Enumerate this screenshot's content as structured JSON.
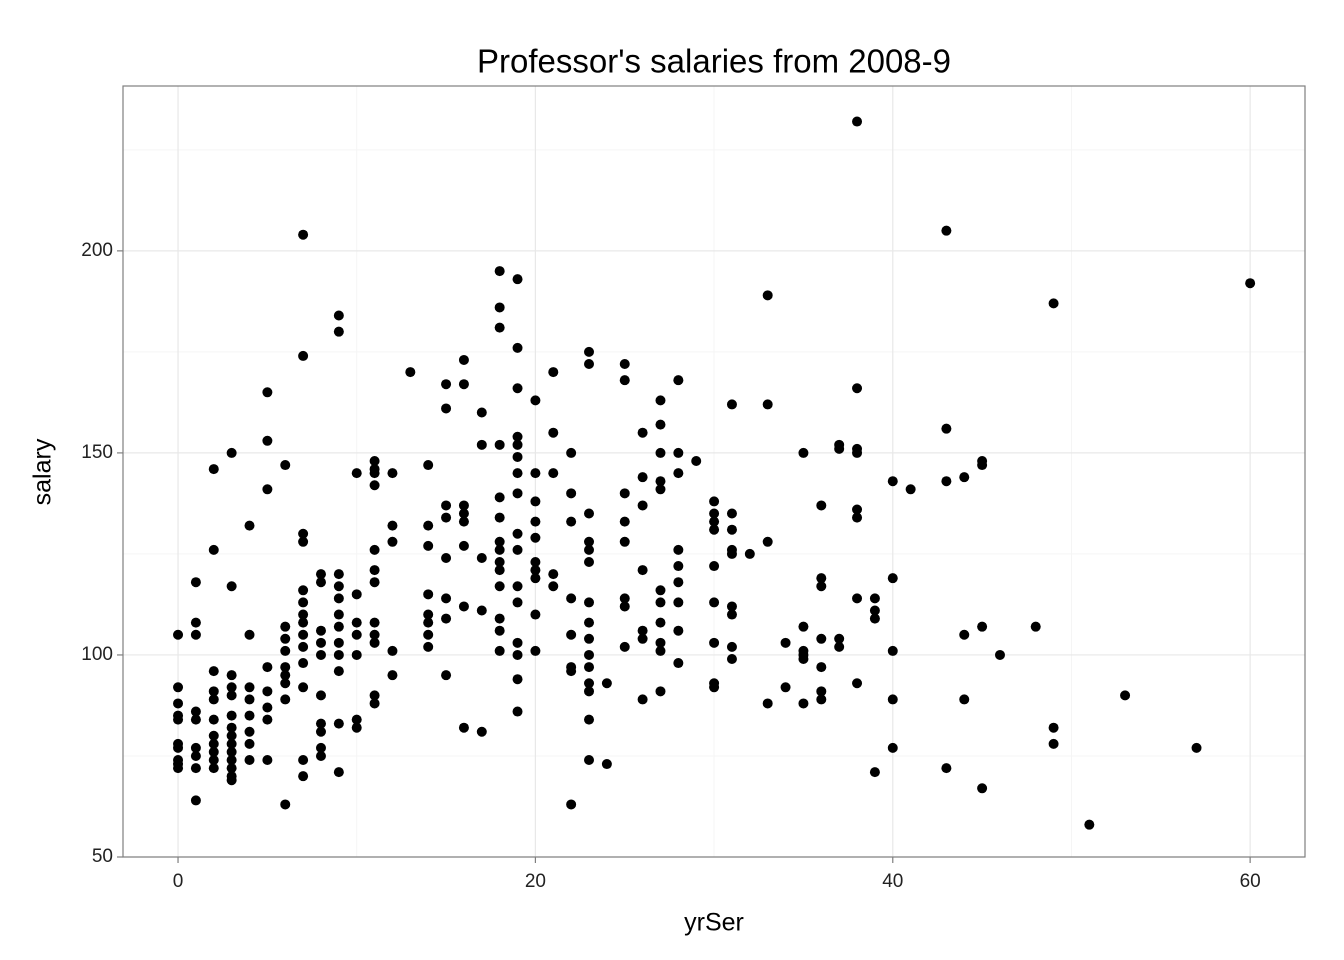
{
  "chart_data": {
    "type": "scatter",
    "title": "Professor's salaries from 2008-9",
    "x_label": "yrSer",
    "y_label": "salary",
    "color": "#000000",
    "grid": true,
    "xlim": [
      -3.08,
      63.07
    ],
    "ylim": [
      50,
      240.8
    ],
    "xticks": [
      0,
      20,
      40,
      60
    ],
    "yticks": [
      50,
      100,
      150,
      200
    ],
    "minor_xticks": [
      10,
      30,
      50
    ],
    "minor_yticks": [
      75,
      125,
      175,
      225
    ],
    "x": [
      0,
      0,
      0,
      0,
      0,
      0,
      0,
      0,
      0,
      0,
      1,
      1,
      1,
      1,
      1,
      1,
      1,
      1,
      1,
      2,
      2,
      2,
      2,
      2,
      2,
      2,
      2,
      2,
      2,
      2,
      3,
      3,
      3,
      3,
      3,
      3,
      3,
      3,
      3,
      3,
      3,
      3,
      3,
      3,
      4,
      4,
      4,
      4,
      4,
      4,
      4,
      4,
      5,
      5,
      5,
      5,
      5,
      5,
      5,
      5,
      6,
      6,
      6,
      6,
      6,
      6,
      6,
      6,
      6,
      7,
      7,
      7,
      7,
      7,
      7,
      7,
      7,
      7,
      7,
      7,
      7,
      7,
      7,
      8,
      8,
      8,
      8,
      8,
      8,
      8,
      8,
      8,
      8,
      9,
      9,
      9,
      9,
      9,
      9,
      9,
      9,
      9,
      9,
      9,
      9,
      10,
      10,
      10,
      10,
      10,
      10,
      10,
      11,
      11,
      11,
      11,
      11,
      11,
      11,
      11,
      11,
      11,
      11,
      11,
      12,
      12,
      12,
      12,
      12,
      13,
      14,
      14,
      14,
      14,
      14,
      14,
      14,
      14,
      15,
      15,
      15,
      15,
      15,
      15,
      15,
      15,
      16,
      16,
      16,
      16,
      16,
      16,
      16,
      16,
      17,
      17,
      17,
      17,
      17,
      18,
      18,
      18,
      18,
      18,
      18,
      18,
      18,
      18,
      18,
      18,
      18,
      18,
      18,
      19,
      19,
      19,
      19,
      19,
      19,
      19,
      19,
      19,
      19,
      19,
      19,
      19,
      19,
      19,
      19,
      20,
      20,
      20,
      20,
      20,
      20,
      20,
      20,
      20,
      20,
      21,
      21,
      21,
      21,
      21,
      22,
      22,
      22,
      22,
      22,
      22,
      22,
      22,
      23,
      23,
      23,
      23,
      23,
      23,
      23,
      23,
      23,
      23,
      23,
      23,
      23,
      23,
      23,
      24,
      24,
      25,
      25,
      25,
      25,
      25,
      25,
      25,
      25,
      26,
      26,
      26,
      26,
      26,
      26,
      26,
      27,
      27,
      27,
      27,
      27,
      27,
      27,
      27,
      27,
      27,
      27,
      28,
      28,
      28,
      28,
      28,
      28,
      28,
      28,
      28,
      29,
      30,
      30,
      30,
      30,
      30,
      30,
      30,
      30,
      30,
      31,
      31,
      31,
      31,
      31,
      31,
      31,
      31,
      31,
      32,
      33,
      33,
      33,
      33,
      34,
      34,
      35,
      35,
      35,
      35,
      35,
      35,
      36,
      36,
      36,
      36,
      36,
      36,
      36,
      37,
      37,
      37,
      37,
      38,
      38,
      38,
      38,
      38,
      38,
      38,
      38,
      39,
      39,
      39,
      39,
      40,
      40,
      40,
      40,
      40,
      41,
      43,
      43,
      43,
      43,
      44,
      44,
      44,
      45,
      45,
      45,
      45,
      46,
      48,
      49,
      49,
      49,
      51,
      53,
      57,
      60
    ],
    "values": [
      105,
      92,
      88,
      85,
      84,
      78,
      77,
      74,
      73,
      72,
      118,
      108,
      105,
      86,
      84,
      77,
      75,
      72,
      64,
      146,
      126,
      96,
      91,
      89,
      84,
      80,
      78,
      76,
      74,
      72,
      150,
      117,
      95,
      92,
      90,
      85,
      82,
      80,
      78,
      76,
      74,
      72,
      70,
      69,
      132,
      105,
      92,
      89,
      85,
      81,
      78,
      74,
      165,
      153,
      141,
      97,
      91,
      87,
      84,
      74,
      147,
      107,
      104,
      101,
      97,
      95,
      93,
      89,
      63,
      204,
      174,
      130,
      128,
      116,
      113,
      110,
      108,
      105,
      102,
      98,
      92,
      74,
      70,
      120,
      118,
      106,
      103,
      100,
      90,
      83,
      81,
      77,
      75,
      184,
      180,
      120,
      117,
      114,
      110,
      107,
      103,
      100,
      96,
      83,
      71,
      145,
      115,
      108,
      105,
      100,
      84,
      82,
      148,
      146,
      145,
      142,
      126,
      121,
      118,
      108,
      105,
      103,
      90,
      88,
      145,
      132,
      128,
      101,
      95,
      170,
      147,
      132,
      127,
      115,
      110,
      108,
      105,
      102,
      167,
      161,
      137,
      134,
      124,
      114,
      109,
      95,
      173,
      167,
      137,
      135,
      133,
      127,
      112,
      82,
      160,
      152,
      124,
      111,
      81,
      195,
      186,
      181,
      152,
      139,
      134,
      128,
      126,
      123,
      121,
      117,
      109,
      106,
      101,
      193,
      176,
      166,
      154,
      152,
      149,
      145,
      140,
      130,
      126,
      117,
      113,
      103,
      100,
      94,
      86,
      163,
      145,
      138,
      133,
      129,
      123,
      121,
      119,
      110,
      101,
      170,
      155,
      145,
      120,
      117,
      150,
      140,
      133,
      114,
      105,
      97,
      96,
      63,
      175,
      172,
      135,
      128,
      126,
      123,
      113,
      108,
      104,
      100,
      97,
      93,
      91,
      84,
      74,
      93,
      73,
      172,
      168,
      140,
      133,
      128,
      114,
      112,
      102,
      155,
      144,
      137,
      121,
      106,
      104,
      89,
      163,
      157,
      150,
      143,
      141,
      116,
      113,
      108,
      103,
      101,
      91,
      168,
      150,
      145,
      126,
      122,
      118,
      113,
      106,
      98,
      148,
      138,
      135,
      133,
      131,
      122,
      113,
      103,
      93,
      92,
      162,
      135,
      131,
      126,
      125,
      112,
      110,
      102,
      99,
      125,
      189,
      162,
      128,
      88,
      103,
      92,
      150,
      107,
      101,
      100,
      99,
      88,
      137,
      119,
      117,
      104,
      97,
      91,
      89,
      152,
      151,
      104,
      102,
      232,
      166,
      151,
      150,
      136,
      134,
      114,
      93,
      114,
      111,
      109,
      71,
      143,
      119,
      101,
      89,
      77,
      141,
      205,
      156,
      143,
      72,
      144,
      105,
      89,
      148,
      147,
      107,
      67,
      100,
      107,
      187,
      82,
      78,
      58,
      90,
      77,
      192
    ]
  }
}
